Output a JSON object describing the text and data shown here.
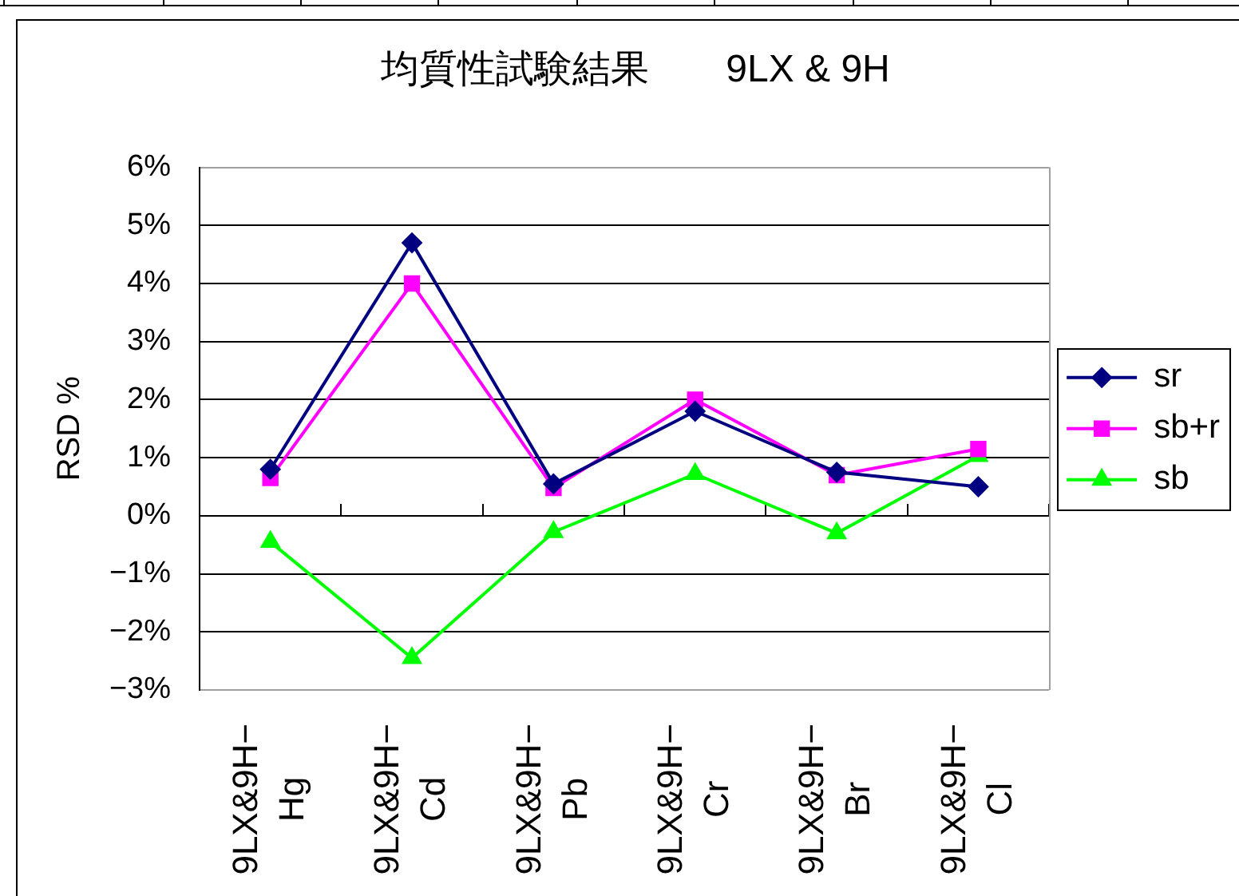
{
  "chart_data": {
    "type": "line",
    "title": "均質性試験結果　　9LX & 9H",
    "ylabel": "RSD %",
    "categories": [
      "9LX&9H−Hg",
      "9LX&9H−Cd",
      "9LX&9H−Pb",
      "9LX&9H−Cr",
      "9LX&9H−Br",
      "9LX&9H−Cl"
    ],
    "series": [
      {
        "name": "sr",
        "color": "#000080",
        "marker": "diamond",
        "values": [
          0.8,
          4.7,
          0.55,
          1.8,
          0.75,
          0.5
        ]
      },
      {
        "name": "sb+r",
        "color": "#ff00ff",
        "marker": "square",
        "values": [
          0.65,
          4.0,
          0.48,
          2.0,
          0.7,
          1.15
        ]
      },
      {
        "name": "sb",
        "color": "#00ff00",
        "marker": "triangle",
        "values": [
          -0.45,
          -2.45,
          -0.28,
          0.72,
          -0.3,
          1.03
        ]
      }
    ],
    "ylim": [
      -3,
      6
    ],
    "yticks": [
      {
        "value": -3,
        "label": "−3%"
      },
      {
        "value": -2,
        "label": "−2%"
      },
      {
        "value": -1,
        "label": "−1%"
      },
      {
        "value": 0,
        "label": "0%"
      },
      {
        "value": 1,
        "label": "1%"
      },
      {
        "value": 2,
        "label": "2%"
      },
      {
        "value": 3,
        "label": "3%"
      },
      {
        "value": 4,
        "label": "4%"
      },
      {
        "value": 5,
        "label": "5%"
      },
      {
        "value": 6,
        "label": "6%"
      }
    ],
    "grid": "y",
    "legend": "right",
    "line_style": "solid"
  }
}
